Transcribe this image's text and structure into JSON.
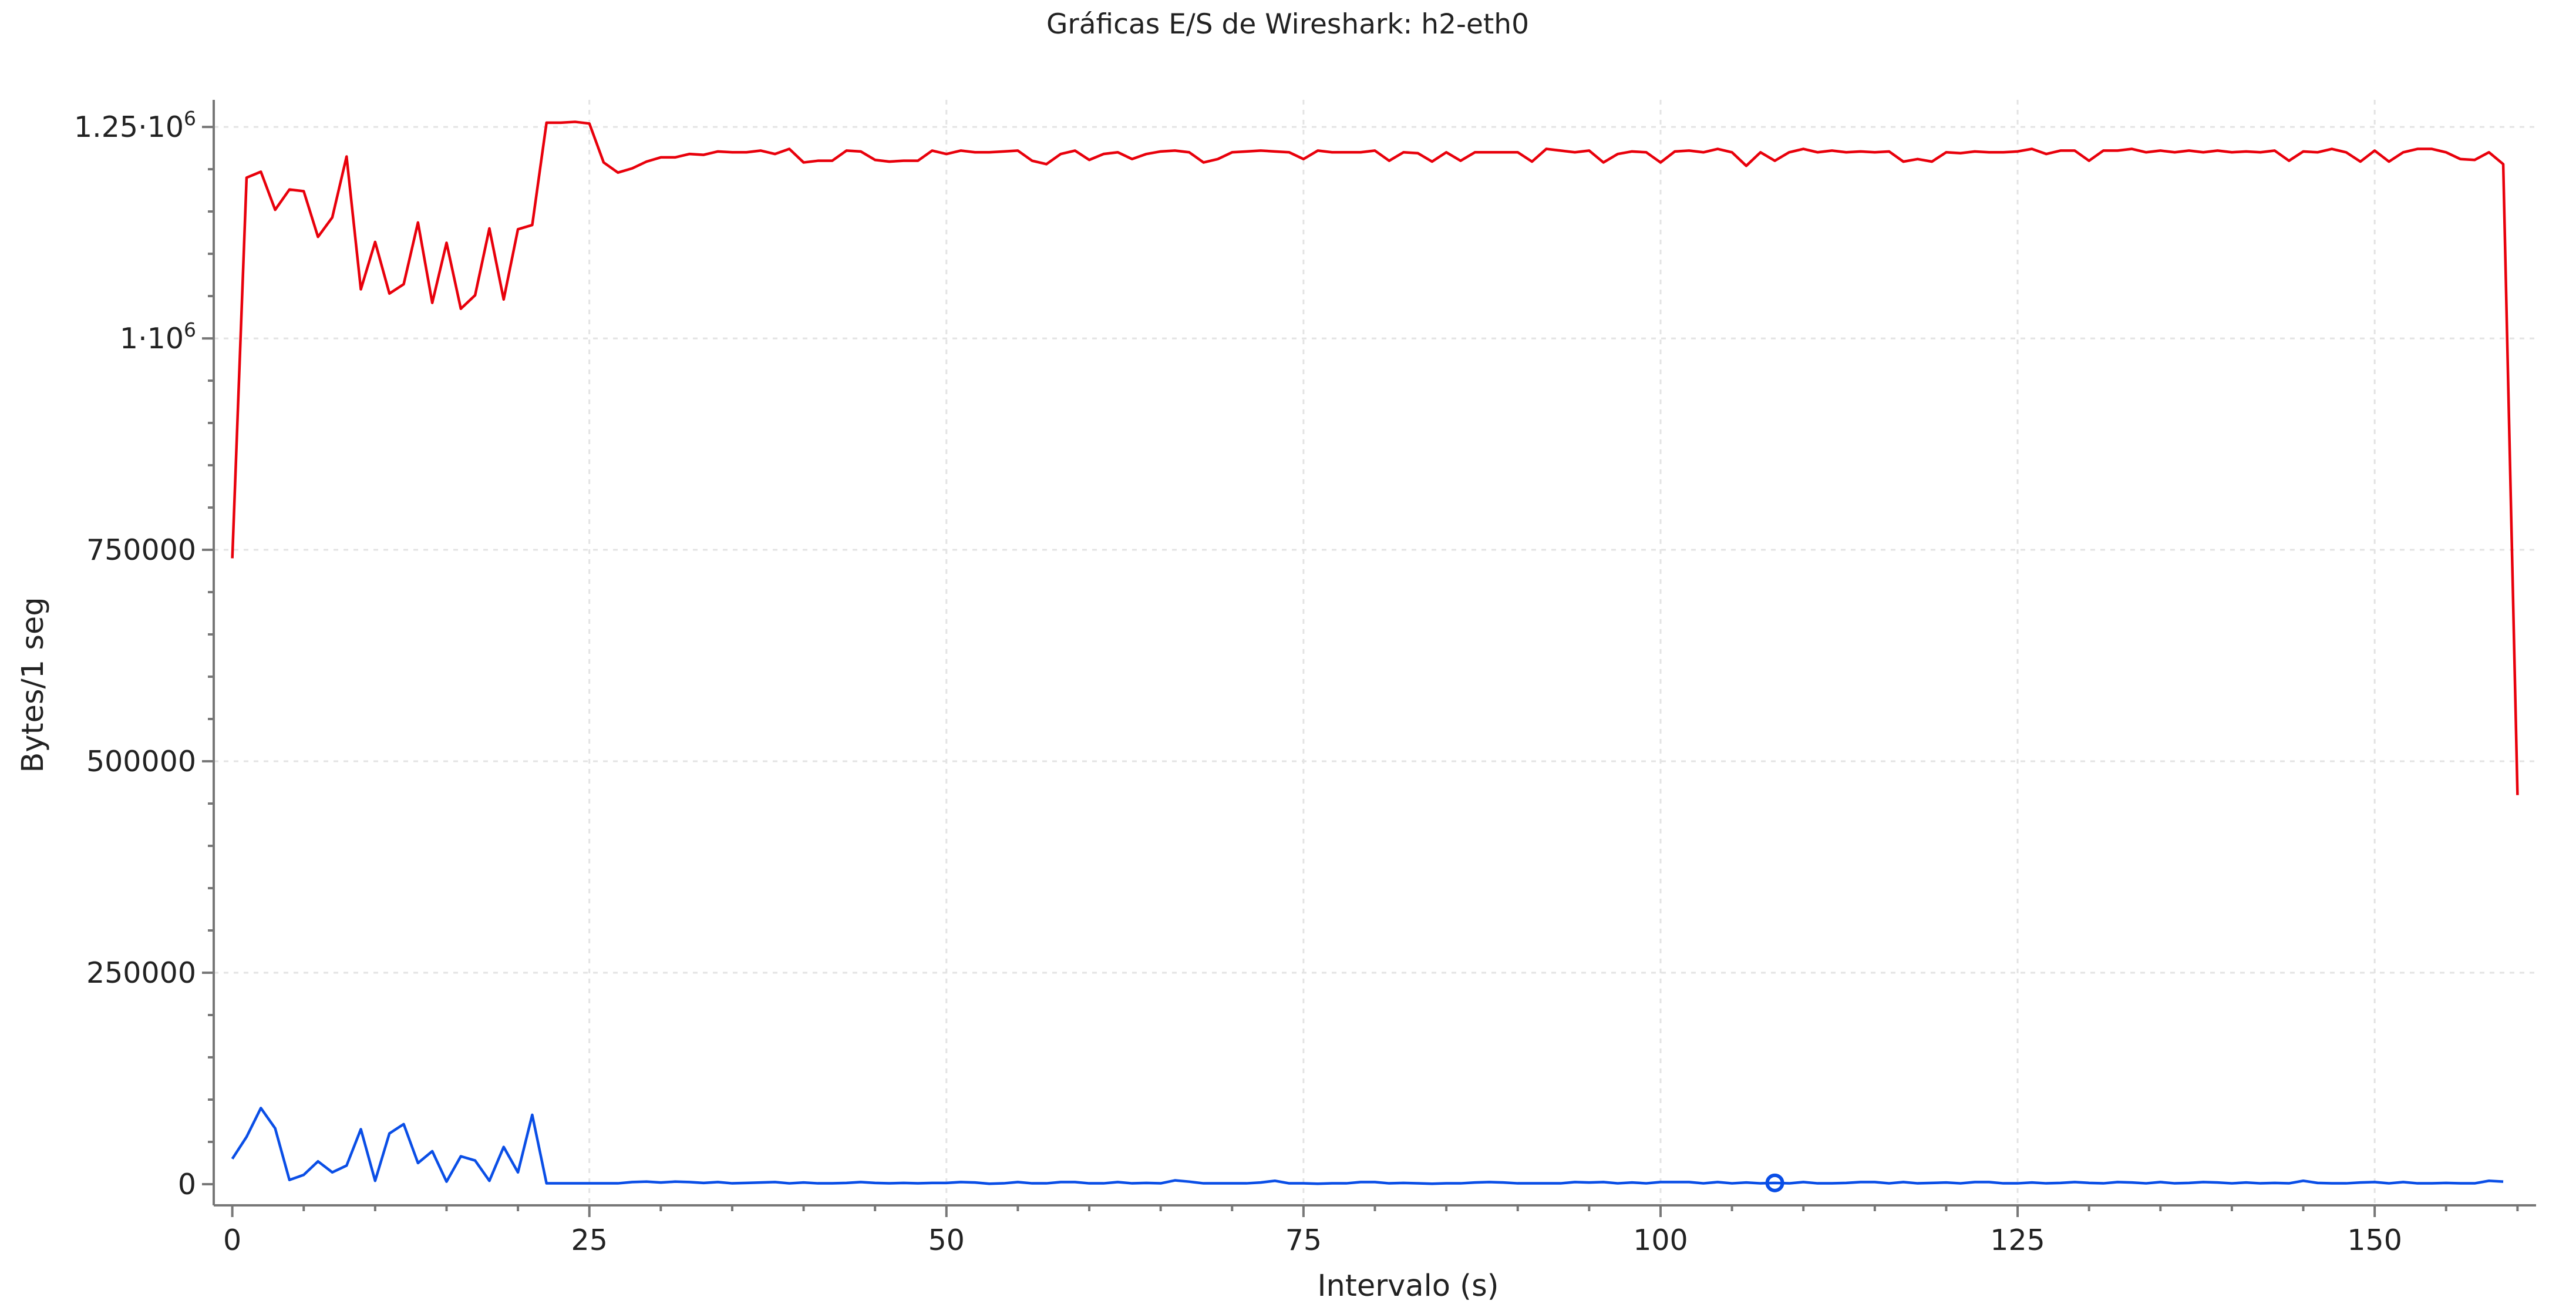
{
  "chart_data": {
    "type": "line",
    "title": "Gráficas E/S de Wireshark: h2-eth0",
    "xlabel": "Intervalo (s)",
    "ylabel": "Bytes/1 seg",
    "xlim": [
      -1.3,
      161.3
    ],
    "ylim": [
      -25000,
      1282000
    ],
    "x_ticks": [
      {
        "value": 0,
        "label": "0"
      },
      {
        "value": 25,
        "label": "25"
      },
      {
        "value": 50,
        "label": "50"
      },
      {
        "value": 75,
        "label": "75"
      },
      {
        "value": 100,
        "label": "100"
      },
      {
        "value": 125,
        "label": "125"
      },
      {
        "value": 150,
        "label": "150"
      }
    ],
    "y_ticks": [
      {
        "value": 0,
        "label": "0"
      },
      {
        "value": 250000,
        "label": "250000"
      },
      {
        "value": 500000,
        "label": "500000"
      },
      {
        "value": 750000,
        "label": "750000"
      },
      {
        "value": 1000000,
        "label": "1·10",
        "exp": "6"
      },
      {
        "value": 1250000,
        "label": "1.25·10",
        "exp": "6"
      }
    ],
    "grid": true,
    "legend": "none",
    "series": [
      {
        "color": "#e8000b",
        "values": [
          740000,
          1190000,
          1197000,
          1152000,
          1176000,
          1174000,
          1120000,
          1143000,
          1215000,
          1058000,
          1114000,
          1053000,
          1064000,
          1137000,
          1042000,
          1113000,
          1035000,
          1051000,
          1130000,
          1046000,
          1129000,
          1134000,
          1255000,
          1255000,
          1256000,
          1254000,
          1208000,
          1196000,
          1201000,
          1209000,
          1214000,
          1214000,
          1218000,
          1217000,
          1221000,
          1220000,
          1220000,
          1222000,
          1218000,
          1224000,
          1208000,
          1210000,
          1210000,
          1222000,
          1221000,
          1211000,
          1209000,
          1210000,
          1210000,
          1222000,
          1218000,
          1222000,
          1220000,
          1220000,
          1221000,
          1222000,
          1210000,
          1206000,
          1218000,
          1222000,
          1211000,
          1218000,
          1220000,
          1212000,
          1218000,
          1221000,
          1222000,
          1220000,
          1208000,
          1212000,
          1220000,
          1221000,
          1222000,
          1221000,
          1220000,
          1212000,
          1222000,
          1220000,
          1220000,
          1220000,
          1222000,
          1210000,
          1220000,
          1219000,
          1209000,
          1220000,
          1210000,
          1220000,
          1220000,
          1220000,
          1220000,
          1209000,
          1224000,
          1222000,
          1220000,
          1222000,
          1208000,
          1218000,
          1221000,
          1220000,
          1208000,
          1221000,
          1222000,
          1220000,
          1224000,
          1220000,
          1204000,
          1220000,
          1210000,
          1220000,
          1224000,
          1220000,
          1222000,
          1220000,
          1221000,
          1220000,
          1221000,
          1209000,
          1212000,
          1209000,
          1220000,
          1219000,
          1221000,
          1220000,
          1220000,
          1221000,
          1224000,
          1218000,
          1222000,
          1222000,
          1210000,
          1222000,
          1222000,
          1224000,
          1220000,
          1222000,
          1220000,
          1222000,
          1220000,
          1222000,
          1220000,
          1221000,
          1220000,
          1222000,
          1210000,
          1221000,
          1220000,
          1224000,
          1220000,
          1209000,
          1222000,
          1209000,
          1220000,
          1224000,
          1224000,
          1220000,
          1212000,
          1211000,
          1220000,
          1206000,
          460000
        ]
      },
      {
        "color": "#0a4ee6",
        "values": [
          30000,
          56000,
          90000,
          66000,
          5000,
          11000,
          27000,
          14000,
          22000,
          65000,
          4000,
          60000,
          71000,
          25000,
          39000,
          3000,
          33000,
          28000,
          4000,
          44000,
          14000,
          82000,
          1000,
          1000,
          1000,
          1000,
          1000,
          1000,
          2500,
          3000,
          2000,
          3000,
          2500,
          1500,
          2500,
          1000,
          1500,
          2000,
          2500,
          1000,
          2000,
          1000,
          1000,
          1500,
          2500,
          1500,
          1000,
          1500,
          1000,
          1500,
          1500,
          2500,
          2000,
          500,
          1000,
          2500,
          1000,
          1000,
          2500,
          2500,
          1000,
          1000,
          2500,
          1000,
          1500,
          1000,
          4500,
          3000,
          1000,
          1000,
          1000,
          1000,
          2000,
          4000,
          1000,
          1000,
          500,
          1000,
          1000,
          2500,
          2500,
          1000,
          1500,
          1000,
          500,
          1000,
          1000,
          2000,
          2500,
          2000,
          1000,
          1000,
          1000,
          1000,
          2500,
          2000,
          2500,
          1000,
          2000,
          1000,
          2500,
          2500,
          2500,
          1000,
          2500,
          1000,
          2000,
          1000,
          1500,
          1000,
          2500,
          1000,
          1000,
          1500,
          2500,
          2500,
          1000,
          2500,
          1000,
          1500,
          2000,
          1000,
          2500,
          2500,
          1000,
          1000,
          2000,
          1000,
          1500,
          2500,
          1500,
          1000,
          2500,
          2000,
          1000,
          2500,
          1000,
          1500,
          2500,
          2000,
          1000,
          2000,
          1000,
          1500,
          1000,
          4000,
          1500,
          1000,
          1000,
          2000,
          2500,
          1000,
          2500,
          1000,
          1000,
          1500,
          1000,
          1000,
          4000,
          3000
        ]
      }
    ],
    "marker": {
      "x": 108,
      "y": 1500,
      "shape": "circle",
      "color": "#0a4ee6"
    }
  }
}
